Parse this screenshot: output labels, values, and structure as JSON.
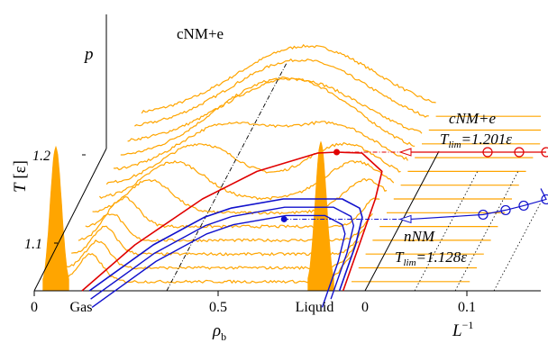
{
  "chart_data": {
    "type": "line",
    "colors": {
      "histogram": "#ffa500",
      "cnm": "#e00000",
      "nnm": "#1010cc",
      "axis": "#000000"
    },
    "annotations": {
      "top_label": "cNM+e",
      "cnm_label": "cNM+e",
      "cnm_tlim_lhs": "T",
      "cnm_tlim_sub": "lim",
      "cnm_tlim_rhs": "=1.201ε",
      "nnm_label": "nNM",
      "nnm_tlim_lhs": "T",
      "nnm_tlim_sub": "lim",
      "nnm_tlim_rhs": "=1.128ε",
      "gas": "Gas",
      "liquid": "Liquid"
    },
    "axes": {
      "p_label": "p",
      "t_label": "T [ε]",
      "rho_label_main": "ρ",
      "rho_label_sub": "b",
      "linv_label_main": "L",
      "linv_label_sup": "−1",
      "t_ticks": [
        "1.1",
        "1.2"
      ],
      "rho_ticks": [
        "0",
        "0.5"
      ],
      "linv_ticks": [
        "0",
        "0.1"
      ]
    },
    "temperature_range": [
      1.05,
      1.25
    ],
    "density_range": [
      0,
      1
    ],
    "series": [
      {
        "name": "cNM+e",
        "coexistence": {
          "T": [
            1.05,
            1.1,
            1.15,
            1.18,
            1.2,
            1.201
          ],
          "rho_low": [
            0.13,
            0.21,
            0.33,
            0.44,
            0.58,
            0.63
          ],
          "rho_high": [
            0.84,
            0.82,
            0.8,
            0.78,
            0.7,
            0.63
          ]
        },
        "critical_point": {
          "rho": 0.63,
          "T": 1.201
        },
        "finite_size": {
          "inv_L": [
            0.085,
            0.12,
            0.15
          ],
          "T": [
            1.201,
            1.201,
            1.201
          ]
        },
        "T_lim": 1.201
      },
      {
        "name": "nNM",
        "coexistence": {
          "T": [
            1.05,
            1.1,
            1.13,
            1.14,
            1.15
          ],
          "rho_low": [
            0.15,
            0.26,
            0.36,
            0.42,
            0.55
          ],
          "rho_high": [
            0.83,
            0.81,
            0.79,
            0.77,
            0.71
          ]
        },
        "critical_point": {
          "rho": 0.58,
          "T": 1.128
        },
        "finite_size": {
          "inv_L": [
            0.08,
            0.105,
            0.125,
            0.15
          ],
          "T": [
            1.133,
            1.138,
            1.143,
            1.15
          ]
        },
        "T_lim": 1.128
      }
    ],
    "histogram_temperatures": [
      1.06,
      1.075,
      1.09,
      1.105,
      1.12,
      1.135,
      1.15,
      1.165,
      1.18,
      1.195,
      1.21,
      1.225,
      1.24
    ],
    "grid": false
  }
}
